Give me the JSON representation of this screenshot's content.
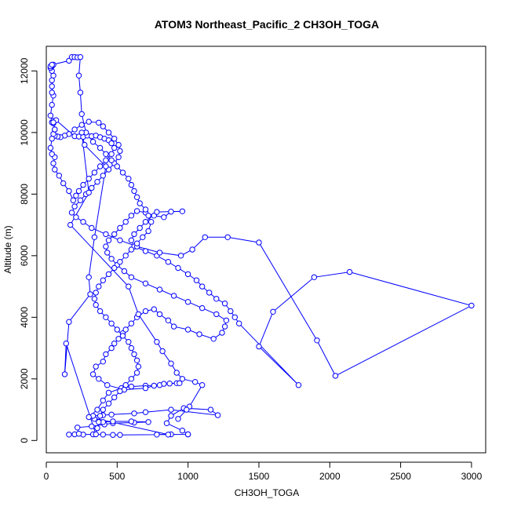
{
  "chart_data": {
    "type": "scatter",
    "title": "ATOM3 Northeast_Pacific_2 CH3OH_TOGA",
    "xlabel": "CH3OH_TOGA",
    "ylabel": "Altitude (m)",
    "xlim": [
      0,
      3100
    ],
    "ylim": [
      -400,
      12800
    ],
    "xticks": [
      0,
      500,
      1000,
      1500,
      2000,
      2500,
      3000
    ],
    "xtick_labels": [
      "0",
      "500",
      "1000",
      "1500",
      "2000",
      "2500",
      "3000"
    ],
    "yticks": [
      0,
      2000,
      4000,
      6000,
      8000,
      10000,
      12000
    ],
    "ytick_labels": [
      "0",
      "2000",
      "4000",
      "6000",
      "8000",
      "10000",
      "12000"
    ],
    "grid": false,
    "color": "#0000ff",
    "series": [
      {
        "style": "line+points",
        "points": [
          [
            880,
            200
          ],
          [
            780,
            190
          ],
          [
            1000,
            200
          ],
          [
            520,
            180
          ],
          [
            470,
            180
          ],
          [
            400,
            190
          ],
          [
            330,
            200
          ],
          [
            260,
            190
          ],
          [
            160,
            190
          ],
          [
            200,
            200
          ],
          [
            230,
            220
          ],
          [
            220,
            420
          ],
          [
            320,
            460
          ],
          [
            410,
            520
          ],
          [
            470,
            560
          ],
          [
            620,
            580
          ],
          [
            720,
            600
          ],
          [
            600,
            620
          ],
          [
            470,
            620
          ],
          [
            400,
            600
          ],
          [
            340,
            700
          ],
          [
            330,
            800
          ],
          [
            400,
            820
          ],
          [
            460,
            840
          ],
          [
            620,
            880
          ],
          [
            700,
            920
          ],
          [
            880,
            1000
          ],
          [
            1210,
            820
          ],
          [
            1160,
            1000
          ],
          [
            970,
            1050
          ],
          [
            880,
            800
          ],
          [
            850,
            560
          ],
          [
            960,
            320
          ],
          [
            1000,
            200
          ],
          [
            860,
            190
          ],
          [
            300,
            760
          ],
          [
            360,
            1000
          ],
          [
            400,
            1300
          ],
          [
            440,
            1550
          ],
          [
            530,
            1700
          ],
          [
            600,
            1750
          ],
          [
            700,
            1780
          ],
          [
            800,
            1800
          ],
          [
            870,
            1850
          ],
          [
            920,
            1860
          ],
          [
            940,
            1860
          ],
          [
            830,
            1840
          ],
          [
            760,
            1780
          ],
          [
            700,
            1700
          ],
          [
            550,
            1650
          ],
          [
            430,
            1800
          ],
          [
            370,
            2000
          ],
          [
            330,
            2150
          ],
          [
            350,
            2400
          ],
          [
            400,
            2560
          ],
          [
            420,
            2800
          ],
          [
            460,
            3000
          ],
          [
            480,
            3150
          ],
          [
            510,
            3300
          ],
          [
            540,
            3480
          ],
          [
            560,
            3600
          ],
          [
            600,
            3800
          ],
          [
            640,
            4000
          ],
          [
            700,
            4200
          ],
          [
            760,
            4260
          ],
          [
            800,
            4100
          ],
          [
            860,
            3900
          ],
          [
            900,
            3700
          ],
          [
            1000,
            3600
          ],
          [
            1080,
            3450
          ],
          [
            1180,
            3300
          ],
          [
            1240,
            3500
          ],
          [
            1260,
            3700
          ],
          [
            1270,
            3900
          ],
          [
            1200,
            4100
          ],
          [
            1100,
            4300
          ],
          [
            1000,
            4500
          ],
          [
            900,
            4700
          ],
          [
            800,
            4900
          ],
          [
            700,
            5100
          ],
          [
            600,
            5300
          ],
          [
            550,
            5500
          ],
          [
            500,
            5700
          ],
          [
            460,
            5900
          ],
          [
            430,
            6100
          ],
          [
            420,
            6300
          ],
          [
            440,
            6500
          ],
          [
            480,
            6700
          ],
          [
            520,
            6900
          ],
          [
            560,
            7100
          ],
          [
            600,
            7300
          ],
          [
            640,
            7450
          ],
          [
            700,
            7400
          ],
          [
            760,
            7300
          ],
          [
            830,
            7250
          ],
          [
            880,
            7430
          ],
          [
            960,
            7440
          ],
          [
            780,
            7420
          ],
          [
            700,
            7100
          ],
          [
            660,
            6900
          ],
          [
            620,
            6700
          ],
          [
            600,
            6500
          ],
          [
            620,
            6300
          ],
          [
            700,
            6150
          ],
          [
            780,
            6000
          ],
          [
            860,
            5800
          ],
          [
            930,
            5600
          ],
          [
            1000,
            5400
          ],
          [
            1060,
            5200
          ],
          [
            1100,
            5000
          ],
          [
            1150,
            4800
          ],
          [
            1200,
            4600
          ],
          [
            1260,
            4450
          ],
          [
            1300,
            4200
          ],
          [
            1330,
            4000
          ],
          [
            1360,
            3800
          ],
          [
            1780,
            1800
          ],
          [
            1500,
            3050
          ],
          [
            1600,
            4180
          ],
          [
            1890,
            5300
          ],
          [
            2140,
            5470
          ],
          [
            3000,
            4380
          ],
          [
            2040,
            2100
          ],
          [
            1910,
            3250
          ],
          [
            1500,
            6430
          ],
          [
            1280,
            6600
          ],
          [
            1120,
            6600
          ],
          [
            1030,
            6200
          ],
          [
            950,
            6000
          ],
          [
            800,
            6100
          ],
          [
            640,
            6300
          ],
          [
            520,
            6500
          ],
          [
            420,
            6700
          ],
          [
            320,
            6900
          ],
          [
            260,
            7100
          ],
          [
            210,
            7250
          ],
          [
            180,
            7400
          ],
          [
            200,
            7600
          ],
          [
            240,
            7800
          ],
          [
            280,
            8000
          ],
          [
            320,
            8200
          ],
          [
            360,
            8400
          ],
          [
            400,
            8600
          ],
          [
            440,
            8800
          ],
          [
            480,
            9000
          ],
          [
            510,
            9200
          ],
          [
            520,
            9400
          ],
          [
            510,
            9600
          ],
          [
            480,
            9800
          ],
          [
            440,
            10000
          ],
          [
            400,
            10200
          ],
          [
            370,
            10320
          ],
          [
            300,
            10350
          ],
          [
            250,
            10250
          ],
          [
            200,
            10100
          ],
          [
            160,
            9950
          ],
          [
            130,
            9900
          ],
          [
            100,
            9850
          ],
          [
            80,
            9870
          ],
          [
            60,
            9900
          ],
          [
            50,
            9950
          ],
          [
            60,
            10100
          ],
          [
            50,
            10300
          ],
          [
            40,
            10330
          ],
          [
            50,
            10380
          ],
          [
            70,
            10400
          ],
          [
            200,
            9880
          ],
          [
            230,
            9870
          ],
          [
            260,
            9860
          ],
          [
            290,
            9900
          ],
          [
            320,
            9880
          ],
          [
            350,
            9900
          ],
          [
            380,
            9850
          ],
          [
            410,
            9800
          ],
          [
            440,
            9750
          ],
          [
            460,
            9650
          ],
          [
            480,
            9500
          ],
          [
            460,
            9300
          ],
          [
            420,
            9100
          ],
          [
            380,
            8900
          ],
          [
            340,
            8700
          ],
          [
            300,
            8500
          ],
          [
            260,
            8300
          ],
          [
            230,
            8100
          ],
          [
            210,
            7950
          ],
          [
            190,
            7800
          ],
          [
            160,
            8100
          ],
          [
            120,
            8350
          ],
          [
            90,
            8600
          ],
          [
            60,
            8800
          ],
          [
            50,
            9000
          ],
          [
            60,
            9200
          ],
          [
            40,
            9300
          ],
          [
            30,
            9500
          ],
          [
            40,
            9800
          ],
          [
            60,
            10100
          ],
          [
            50,
            10330
          ],
          [
            30,
            10550
          ],
          [
            40,
            10900
          ],
          [
            50,
            11200
          ],
          [
            40,
            11300
          ],
          [
            40,
            11500
          ],
          [
            40,
            11700
          ],
          [
            50,
            11850
          ],
          [
            40,
            12000
          ],
          [
            30,
            12100
          ],
          [
            40,
            12150
          ],
          [
            50,
            12200
          ],
          [
            30,
            12150
          ],
          [
            40,
            12200
          ],
          [
            160,
            12330
          ],
          [
            180,
            12450
          ],
          [
            200,
            12450
          ],
          [
            220,
            12440
          ],
          [
            240,
            12450
          ],
          [
            230,
            11850
          ],
          [
            240,
            11300
          ],
          [
            250,
            10600
          ],
          [
            280,
            10000
          ],
          [
            330,
            9700
          ],
          [
            380,
            9500
          ],
          [
            420,
            9300
          ],
          [
            460,
            9100
          ],
          [
            500,
            8900
          ],
          [
            540,
            8700
          ],
          [
            580,
            8500
          ],
          [
            600,
            8300
          ],
          [
            620,
            8100
          ],
          [
            640,
            7900
          ],
          [
            660,
            7700
          ],
          [
            700,
            7500
          ],
          [
            720,
            7300
          ],
          [
            740,
            7100
          ],
          [
            720,
            6800
          ],
          [
            680,
            6600
          ],
          [
            640,
            6400
          ],
          [
            600,
            6200
          ],
          [
            560,
            6000
          ],
          [
            520,
            5800
          ],
          [
            480,
            5600
          ],
          [
            440,
            5400
          ],
          [
            400,
            5200
          ],
          [
            370,
            5000
          ],
          [
            350,
            4800
          ],
          [
            340,
            4600
          ],
          [
            350,
            4400
          ],
          [
            380,
            4200
          ],
          [
            420,
            4000
          ],
          [
            460,
            3800
          ],
          [
            500,
            3600
          ],
          [
            540,
            3400
          ],
          [
            580,
            3200
          ],
          [
            600,
            3000
          ],
          [
            620,
            2800
          ],
          [
            640,
            2600
          ],
          [
            650,
            2400
          ],
          [
            640,
            2200
          ],
          [
            600,
            2000
          ],
          [
            560,
            1800
          ],
          [
            520,
            1600
          ],
          [
            480,
            1400
          ],
          [
            440,
            1200
          ],
          [
            400,
            1000
          ],
          [
            380,
            800
          ],
          [
            370,
            600
          ],
          [
            360,
            400
          ],
          [
            350,
            200
          ],
          [
            140,
            3150
          ],
          [
            130,
            2150
          ],
          [
            160,
            3850
          ],
          [
            310,
            4750
          ],
          [
            300,
            5300
          ],
          [
            340,
            6600
          ],
          [
            420,
            8900
          ],
          [
            270,
            9600
          ],
          [
            250,
            10000
          ],
          [
            300,
            8050
          ],
          [
            170,
            7000
          ],
          [
            580,
            5000
          ],
          [
            650,
            4100
          ],
          [
            780,
            3200
          ],
          [
            820,
            2900
          ],
          [
            880,
            2500
          ],
          [
            920,
            2200
          ],
          [
            960,
            2000
          ],
          [
            1050,
            1900
          ],
          [
            1100,
            1800
          ],
          [
            1010,
            1100
          ],
          [
            990,
            1000
          ],
          [
            930,
            700
          ]
        ]
      }
    ]
  }
}
